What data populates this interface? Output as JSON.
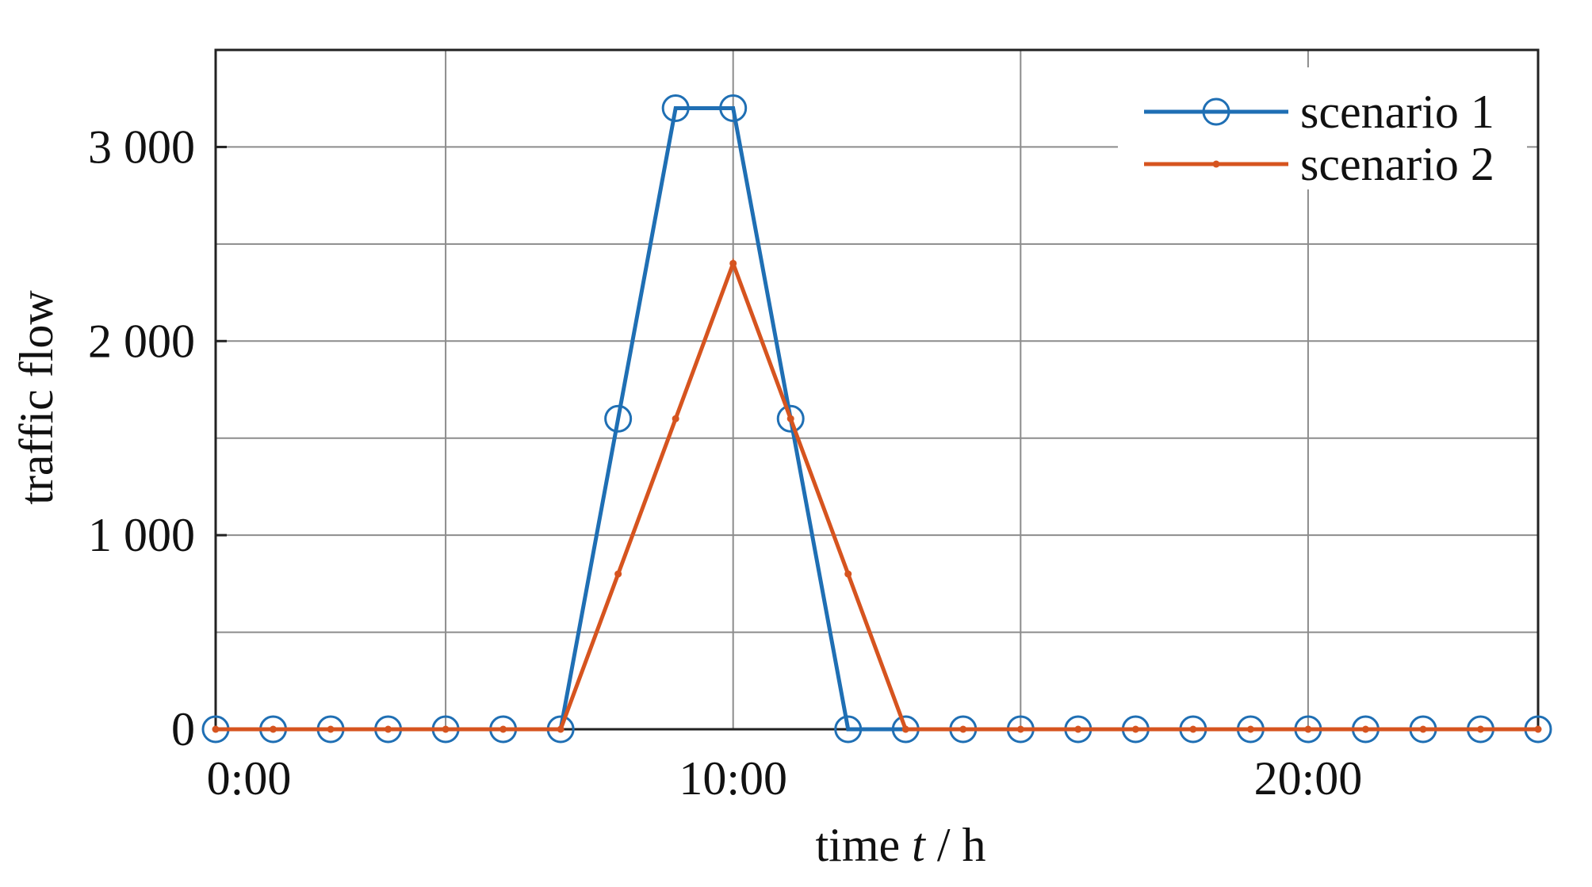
{
  "chart_data": {
    "type": "line",
    "title": "",
    "xlabel_prefix": "time ",
    "xlabel_var": "t",
    "xlabel_suffix": " / h",
    "ylabel": "traffic flow",
    "x": [
      0,
      1,
      2,
      3,
      4,
      5,
      6,
      7,
      8,
      9,
      10,
      11,
      12,
      13,
      14,
      15,
      16,
      17,
      18,
      19,
      20,
      21,
      22,
      23
    ],
    "x_ticks": [
      {
        "value": 0,
        "label": "0:00"
      },
      {
        "value": 9,
        "label": "10:00"
      },
      {
        "value": 19,
        "label": "20:00"
      }
    ],
    "y_ticks": [
      {
        "value": 0,
        "label": "0"
      },
      {
        "value": 1000,
        "label": "1 000"
      },
      {
        "value": 2000,
        "label": "2 000"
      },
      {
        "value": 3000,
        "label": "3 000"
      }
    ],
    "y_minor_grid": [
      500,
      1500,
      2500
    ],
    "x_grid": [
      0,
      4,
      9,
      14,
      19,
      23
    ],
    "xlim": [
      0,
      23
    ],
    "ylim": [
      0,
      3500
    ],
    "grid": true,
    "legend_position": "top-right",
    "series": [
      {
        "name": "scenario 1",
        "color": "#1f6fb4",
        "marker": "circle",
        "values": [
          0,
          0,
          0,
          0,
          0,
          0,
          0,
          1600,
          3200,
          3200,
          1600,
          0,
          0,
          0,
          0,
          0,
          0,
          0,
          0,
          0,
          0,
          0,
          0,
          0
        ]
      },
      {
        "name": "scenario 2",
        "color": "#d6541f",
        "marker": "dot",
        "values": [
          0,
          0,
          0,
          0,
          0,
          0,
          0,
          800,
          1600,
          2400,
          1600,
          800,
          0,
          0,
          0,
          0,
          0,
          0,
          0,
          0,
          0,
          0,
          0,
          0
        ]
      }
    ]
  }
}
